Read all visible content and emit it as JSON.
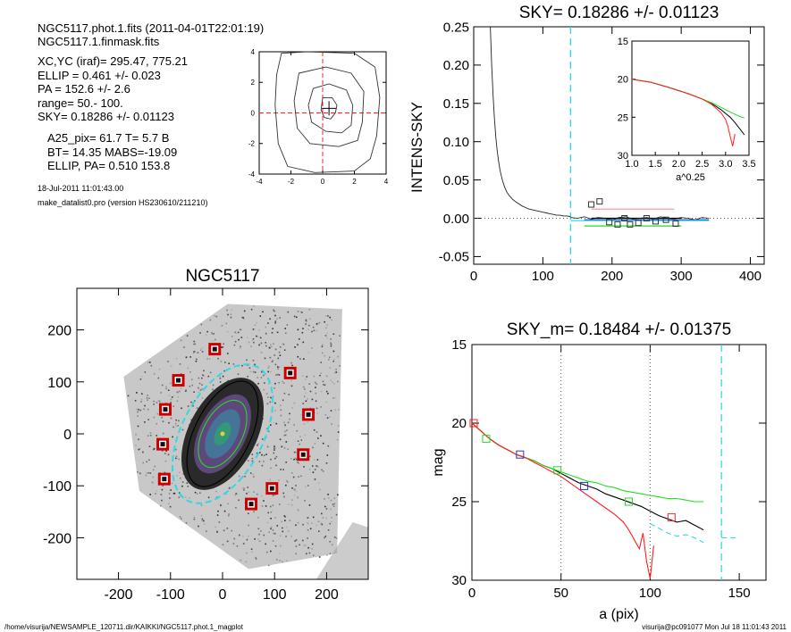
{
  "header": {
    "lines": [
      "NGC5117.phot.1.fits  (2011-04-01T22:01:19)",
      "NGC5117.1.finmask.fits",
      "XC,YC (iraf)=   295.47, 775.21",
      "ELLIP = 0.461 +/- 0.023",
      "PA    = 152.6 +/-   2.6",
      "range=   50.-  100.",
      "SKY= 0.18286 +/- 0.01123",
      "A25_pix= 61.7   T= 5.7  B",
      "BT=  14.35   MABS=-19.09",
      "ELLIP, PA= 0.510   153.8",
      "18-Jul-2011 11:01:43.00",
      "make_datalist0.pro (version HS230610/211210)"
    ]
  },
  "footer": {
    "left": "/home/visurija/NEWSAMPLE_120711.dir/KAIKKI/NGC5117.phot.1_magplot",
    "right": "visurija@pc091077  Mon Jul 18 11:01:43 2011"
  },
  "colors": {
    "black": "#000000",
    "red": "#ff2020",
    "green": "#22dd22",
    "blue": "#3030c0",
    "cyan": "#30d8e8",
    "gray": "#888888",
    "marker_red": "#cc0000",
    "pink": "#ff9aa0"
  },
  "chart_data": [
    {
      "id": "contour",
      "type": "contour",
      "title": "",
      "xlim": [
        -4,
        4
      ],
      "ylim": [
        -4,
        4
      ],
      "xticks": [
        "-4",
        "-2",
        "0",
        "2",
        "4"
      ],
      "yticks": [
        "-4",
        "-2",
        "0",
        "2",
        "4"
      ],
      "center": [
        0.4,
        0.3
      ],
      "levels": [
        [
          [
            0.0,
            1.0
          ],
          [
            0.6,
            1.0
          ],
          [
            0.9,
            0.5
          ],
          [
            0.8,
            0.0
          ],
          [
            0.5,
            -0.4
          ],
          [
            0.1,
            -0.3
          ],
          [
            -0.1,
            0.2
          ]
        ],
        [
          [
            -0.6,
            1.6
          ],
          [
            0.4,
            1.9
          ],
          [
            1.5,
            1.5
          ],
          [
            1.9,
            0.5
          ],
          [
            1.8,
            -0.8
          ],
          [
            1.2,
            -1.3
          ],
          [
            0.2,
            -1.2
          ],
          [
            -0.7,
            -0.6
          ],
          [
            -0.9,
            0.5
          ]
        ],
        [
          [
            -1.5,
            2.6
          ],
          [
            0.2,
            3.0
          ],
          [
            1.8,
            2.6
          ],
          [
            2.6,
            1.4
          ],
          [
            2.5,
            -0.6
          ],
          [
            2.2,
            -1.8
          ],
          [
            1.0,
            -2.2
          ],
          [
            -0.8,
            -2.0
          ],
          [
            -1.6,
            -1.0
          ],
          [
            -1.8,
            0.8
          ]
        ],
        [
          [
            -2.6,
            3.9
          ],
          [
            -1.0,
            4.0
          ],
          [
            2.0,
            3.9
          ],
          [
            3.3,
            3.0
          ],
          [
            3.6,
            1.0
          ],
          [
            3.4,
            -1.5
          ],
          [
            3.0,
            -3.0
          ],
          [
            2.0,
            -3.8
          ],
          [
            -0.5,
            -3.9
          ],
          [
            -2.2,
            -3.5
          ],
          [
            -2.8,
            -2.0
          ],
          [
            -3.0,
            0.5
          ],
          [
            -2.9,
            2.5
          ]
        ]
      ]
    },
    {
      "id": "sky",
      "type": "line",
      "title": "SKY= 0.18286 +/- 0.01123",
      "xlabel": "",
      "ylabel": "INTENS-SKY",
      "xlim": [
        0,
        420
      ],
      "ylim": [
        -0.06,
        0.25
      ],
      "xticks": [
        "0",
        "100",
        "200",
        "300",
        "400"
      ],
      "yticks": [
        "-0.05",
        "0.00",
        "0.05",
        "0.10",
        "0.15",
        "0.20",
        "0.25"
      ],
      "profile_x": [
        24,
        26,
        28,
        30,
        32,
        34,
        36,
        38,
        40,
        42,
        45,
        48,
        52,
        56,
        60,
        65,
        70,
        75,
        80,
        85,
        90,
        95,
        100,
        105,
        110,
        115,
        120,
        125,
        130,
        135,
        140
      ],
      "profile_y": [
        0.25,
        0.2,
        0.16,
        0.13,
        0.105,
        0.088,
        0.074,
        0.063,
        0.055,
        0.048,
        0.04,
        0.034,
        0.029,
        0.025,
        0.022,
        0.019,
        0.016,
        0.014,
        0.012,
        0.011,
        0.01,
        0.009,
        0.008,
        0.007,
        0.006,
        0.005,
        0.004,
        0.004,
        0.003,
        0.003,
        0.002
      ],
      "sky_x": [
        140,
        150,
        160,
        170,
        180,
        190,
        200,
        210,
        220,
        230,
        240,
        250,
        260,
        270,
        280,
        290,
        300,
        310,
        320,
        330,
        340
      ],
      "sky_y": [
        0.001,
        0.0,
        0.002,
        -0.001,
        0.001,
        0.0,
        -0.002,
        0.001,
        0.002,
        -0.001,
        0.0,
        0.001,
        -0.001,
        0.002,
        0.0,
        -0.001,
        0.001,
        0.0,
        -0.002,
        0.001,
        0.0
      ],
      "sky_cut": 140,
      "squares": [
        [
          170,
          0.018
        ],
        [
          182,
          0.022
        ],
        [
          196,
          -0.005
        ],
        [
          208,
          -0.008
        ],
        [
          218,
          0.0
        ],
        [
          226,
          -0.008
        ],
        [
          238,
          -0.006
        ],
        [
          250,
          0.0
        ],
        [
          263,
          -0.004
        ],
        [
          278,
          -0.002
        ],
        [
          292,
          -0.007
        ]
      ],
      "ranges": [
        {
          "color": "pink",
          "x": [
            170,
            290
          ],
          "y": 0.012
        },
        {
          "color": "black",
          "x": [
            170,
            300
          ],
          "y": 0.0
        },
        {
          "color": "blue",
          "x": [
            160,
            340
          ],
          "y": -0.002
        },
        {
          "color": "cyan",
          "x": [
            140,
            340
          ],
          "y": -0.003
        },
        {
          "color": "green",
          "x": [
            160,
            300
          ],
          "y": -0.01
        }
      ],
      "inset": {
        "xlabel": "a^0.25",
        "xlim": [
          1.0,
          3.5
        ],
        "ylim": [
          15,
          30
        ],
        "xticks": [
          "1.0",
          "1.5",
          "2.0",
          "2.5",
          "3.0",
          "3.5"
        ],
        "yticks": [
          "15",
          "20",
          "25",
          "30"
        ],
        "series": [
          {
            "color": "black",
            "x": [
              1.0,
              1.4,
              1.8,
              2.2,
              2.5,
              2.7,
              2.9,
              3.0,
              3.1,
              3.2,
              3.3,
              3.4
            ],
            "y": [
              20.0,
              20.4,
              21.1,
              21.9,
              22.6,
              23.2,
              24.0,
              24.5,
              25.0,
              25.7,
              26.5,
              27.3
            ]
          },
          {
            "color": "green",
            "x": [
              1.0,
              1.4,
              1.8,
              2.2,
              2.5,
              2.7,
              2.9,
              3.0,
              3.1,
              3.2,
              3.3,
              3.4
            ],
            "y": [
              20.0,
              20.4,
              21.1,
              21.9,
              22.6,
              23.1,
              23.7,
              24.0,
              24.3,
              24.6,
              24.9,
              25.1
            ]
          },
          {
            "color": "red",
            "x": [
              1.0,
              1.4,
              1.8,
              2.2,
              2.5,
              2.7,
              2.9,
              3.0,
              3.05,
              3.1,
              3.15,
              3.2
            ],
            "y": [
              20.0,
              20.4,
              21.1,
              21.9,
              22.6,
              23.3,
              24.4,
              25.3,
              26.2,
              27.5,
              28.8,
              27.2
            ]
          }
        ]
      }
    },
    {
      "id": "image",
      "type": "scatter",
      "title": "NGC5117",
      "xlim": [
        -280,
        280
      ],
      "ylim": [
        -280,
        280
      ],
      "xticks": [
        "-200",
        "-100",
        "0",
        "100",
        "200"
      ],
      "yticks": [
        "-200",
        "-100",
        "0",
        "100",
        "200"
      ],
      "markers": [
        [
          -15,
          163
        ],
        [
          -85,
          103
        ],
        [
          -110,
          47
        ],
        [
          -115,
          -20
        ],
        [
          -112,
          -87
        ],
        [
          130,
          117
        ],
        [
          165,
          37
        ],
        [
          155,
          -40
        ],
        [
          95,
          -105
        ],
        [
          55,
          -135
        ]
      ],
      "ellipses": [
        {
          "color": "cyan",
          "a": 145,
          "ellip": 0.46,
          "pa": 152.6,
          "dashed": true
        },
        {
          "color": "black",
          "a": 110,
          "ellip": 0.51,
          "pa": 153.8,
          "dashed": false
        },
        {
          "color": "green",
          "a": 70,
          "ellip": 0.46,
          "pa": 152.6,
          "dashed": false
        }
      ]
    },
    {
      "id": "mag",
      "type": "line",
      "title": "SKY_m=  0.18484 +/- 0.01375",
      "xlabel": "a (pix)",
      "ylabel": "mag",
      "xlim": [
        0,
        165
      ],
      "ylim": [
        15,
        30
      ],
      "xticks": [
        "0",
        "50",
        "100",
        "150"
      ],
      "yticks": [
        "15",
        "20",
        "25",
        "30"
      ],
      "vlines_dotted": [
        50,
        100
      ],
      "vline_cyan": 140,
      "series": [
        {
          "name": "",
          "color": "black",
          "x": [
            0,
            5,
            10,
            15,
            20,
            25,
            30,
            35,
            40,
            45,
            50,
            55,
            60,
            65,
            70,
            75,
            80,
            85,
            90,
            95,
            100,
            105,
            110,
            115,
            120,
            125,
            130
          ],
          "y": [
            20.0,
            20.5,
            21.0,
            21.4,
            21.7,
            22.0,
            22.2,
            22.4,
            22.7,
            22.9,
            23.2,
            23.5,
            23.8,
            24.0,
            24.2,
            24.5,
            24.7,
            24.9,
            25.1,
            25.3,
            25.6,
            25.9,
            26.1,
            26.3,
            26.2,
            26.5,
            26.8
          ]
        },
        {
          "name": "",
          "color": "green",
          "x": [
            0,
            5,
            10,
            15,
            20,
            25,
            30,
            35,
            40,
            45,
            50,
            55,
            60,
            65,
            70,
            75,
            80,
            85,
            90,
            95,
            100,
            105,
            110,
            115,
            120,
            125,
            130
          ],
          "y": [
            20.0,
            20.5,
            21.0,
            21.4,
            21.7,
            22.0,
            22.2,
            22.4,
            22.7,
            22.9,
            23.1,
            23.3,
            23.5,
            23.7,
            23.8,
            24.0,
            24.1,
            24.3,
            24.4,
            24.5,
            24.6,
            24.7,
            24.8,
            24.8,
            24.9,
            25.0,
            25.0
          ]
        },
        {
          "name": "",
          "color": "red",
          "x": [
            0,
            5,
            10,
            15,
            20,
            25,
            30,
            35,
            40,
            45,
            50,
            55,
            60,
            65,
            70,
            75,
            80,
            85,
            88,
            90,
            92,
            94,
            96,
            98,
            100,
            102
          ],
          "y": [
            20.0,
            20.5,
            21.0,
            21.4,
            21.7,
            22.0,
            22.2,
            22.5,
            22.8,
            23.1,
            23.4,
            23.8,
            24.2,
            24.6,
            25.0,
            25.4,
            25.8,
            26.3,
            26.8,
            27.2,
            27.6,
            28.0,
            27.0,
            28.8,
            29.9,
            27.8
          ]
        },
        {
          "name": "",
          "color": "cyan",
          "x": [
            100,
            105,
            110,
            115,
            120,
            125,
            130
          ],
          "y": [
            26.4,
            26.7,
            27.0,
            27.2,
            27.1,
            27.3,
            27.6
          ],
          "dashed": true
        },
        {
          "name": "",
          "color": "cyan",
          "x": [
            140,
            150
          ],
          "y": [
            27.3,
            27.3
          ],
          "dashed": true
        }
      ],
      "squares": [
        {
          "color": "red",
          "x": 1,
          "y": 20.0
        },
        {
          "color": "green",
          "x": 8,
          "y": 21.0
        },
        {
          "color": "blue",
          "x": 27,
          "y": 22.0
        },
        {
          "color": "green",
          "x": 48,
          "y": 23.0
        },
        {
          "color": "blue",
          "x": 63,
          "y": 24.0
        },
        {
          "color": "green",
          "x": 88,
          "y": 25.0
        },
        {
          "color": "red",
          "x": 112,
          "y": 26.0
        }
      ]
    }
  ]
}
